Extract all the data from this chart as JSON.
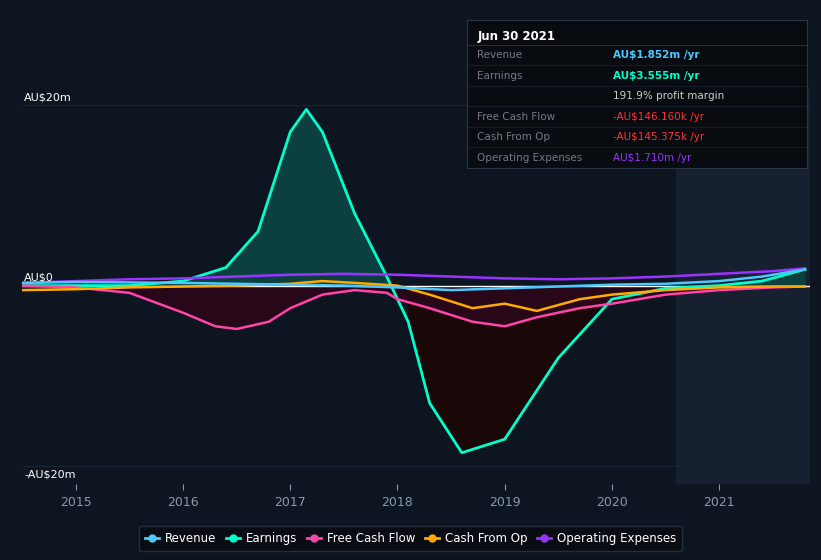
{
  "bg_color": "#0d1520",
  "plot_bg_color": "#0d1520",
  "axis_label_color": "#8899aa",
  "grid_color": "#1a2535",
  "zero_line_color": "#ffffff",
  "ylim": [
    -22,
    22
  ],
  "xlim": [
    2014.5,
    2021.85
  ],
  "ytick_vals": [
    -20,
    0,
    20
  ],
  "ytick_labels": [
    "-AU$20m",
    "AU$0",
    "AU$20m"
  ],
  "xticks": [
    2015,
    2016,
    2017,
    2018,
    2019,
    2020,
    2021
  ],
  "highlight_x_start": 2020.6,
  "highlight_color": "#162030",
  "revenue_color": "#4dc8ff",
  "earnings_color": "#00ffcc",
  "fcf_color": "#ff44aa",
  "cop_color": "#ffaa00",
  "opex_color": "#9933ff",
  "earnings_fill_pos": "#0c4040",
  "earnings_fill_neg": "#1a0808",
  "fcf_fill": "#280818",
  "tooltip_title": "Jun 30 2021",
  "tooltip_rows": [
    {
      "label": "Revenue",
      "value": "AU$1.852m /yr",
      "lcolor": "#777788",
      "vcolor": "#4dc8ff"
    },
    {
      "label": "Earnings",
      "value": "AU$3.555m /yr",
      "lcolor": "#777788",
      "vcolor": "#00ffcc"
    },
    {
      "label": "",
      "value": "191.9% profit margin",
      "lcolor": "#777788",
      "vcolor": "#cccccc"
    },
    {
      "label": "Free Cash Flow",
      "value": "-AU$146.160k /yr",
      "lcolor": "#777788",
      "vcolor": "#ff3333"
    },
    {
      "label": "Cash From Op",
      "value": "-AU$145.375k /yr",
      "lcolor": "#777788",
      "vcolor": "#ff3333"
    },
    {
      "label": "Operating Expenses",
      "value": "AU$1.710m /yr",
      "lcolor": "#777788",
      "vcolor": "#9933ff"
    }
  ],
  "legend": [
    {
      "label": "Revenue",
      "color": "#4dc8ff"
    },
    {
      "label": "Earnings",
      "color": "#00ffcc"
    },
    {
      "label": "Free Cash Flow",
      "color": "#ff44aa"
    },
    {
      "label": "Cash From Op",
      "color": "#ffaa00"
    },
    {
      "label": "Operating Expenses",
      "color": "#9933ff"
    }
  ],
  "earnings_x": [
    2014.5,
    2015.0,
    2015.5,
    2016.0,
    2016.4,
    2016.7,
    2017.0,
    2017.15,
    2017.3,
    2017.6,
    2017.9,
    2018.1,
    2018.3,
    2018.6,
    2019.0,
    2019.5,
    2020.0,
    2020.5,
    2021.0,
    2021.4,
    2021.8
  ],
  "earnings_y": [
    0.0,
    0.0,
    0.0,
    0.5,
    2.0,
    6.0,
    17.0,
    19.5,
    17.0,
    8.0,
    1.0,
    -4.0,
    -13.0,
    -18.5,
    -17.0,
    -8.0,
    -1.5,
    -0.3,
    0.0,
    0.5,
    1.8
  ],
  "revenue_x": [
    2014.5,
    2015.0,
    2015.5,
    2016.0,
    2016.5,
    2017.0,
    2017.5,
    2018.0,
    2018.5,
    2019.0,
    2019.5,
    2020.0,
    2020.5,
    2021.0,
    2021.4,
    2021.8
  ],
  "revenue_y": [
    0.3,
    0.4,
    0.35,
    0.3,
    0.2,
    0.1,
    0.0,
    -0.2,
    -0.5,
    -0.3,
    -0.1,
    0.1,
    0.2,
    0.5,
    1.0,
    1.8
  ],
  "fcf_x": [
    2014.5,
    2015.0,
    2015.5,
    2016.0,
    2016.3,
    2016.5,
    2016.8,
    2017.0,
    2017.3,
    2017.6,
    2017.9,
    2018.0,
    2018.3,
    2018.7,
    2019.0,
    2019.3,
    2019.7,
    2020.0,
    2020.5,
    2021.0,
    2021.5,
    2021.8
  ],
  "fcf_y": [
    0.0,
    -0.2,
    -0.8,
    -3.0,
    -4.5,
    -4.8,
    -4.0,
    -2.5,
    -1.0,
    -0.5,
    -0.8,
    -1.5,
    -2.5,
    -4.0,
    -4.5,
    -3.5,
    -2.5,
    -2.0,
    -1.0,
    -0.5,
    -0.2,
    -0.1
  ],
  "cop_x": [
    2014.5,
    2015.0,
    2015.5,
    2016.0,
    2016.5,
    2017.0,
    2017.3,
    2017.6,
    2018.0,
    2018.3,
    2018.7,
    2019.0,
    2019.3,
    2019.7,
    2020.0,
    2020.5,
    2021.0,
    2021.5,
    2021.8
  ],
  "cop_y": [
    -0.5,
    -0.4,
    -0.2,
    -0.1,
    0.0,
    0.2,
    0.5,
    0.3,
    0.0,
    -1.0,
    -2.5,
    -2.0,
    -2.8,
    -1.5,
    -1.0,
    -0.5,
    -0.2,
    -0.1,
    -0.1
  ],
  "opex_x": [
    2014.5,
    2015.0,
    2015.5,
    2016.0,
    2016.5,
    2017.0,
    2017.5,
    2018.0,
    2018.5,
    2019.0,
    2019.5,
    2020.0,
    2020.5,
    2021.0,
    2021.5,
    2021.8
  ],
  "opex_y": [
    0.3,
    0.5,
    0.7,
    0.8,
    1.0,
    1.2,
    1.3,
    1.2,
    1.0,
    0.8,
    0.7,
    0.8,
    1.0,
    1.3,
    1.6,
    1.9
  ]
}
